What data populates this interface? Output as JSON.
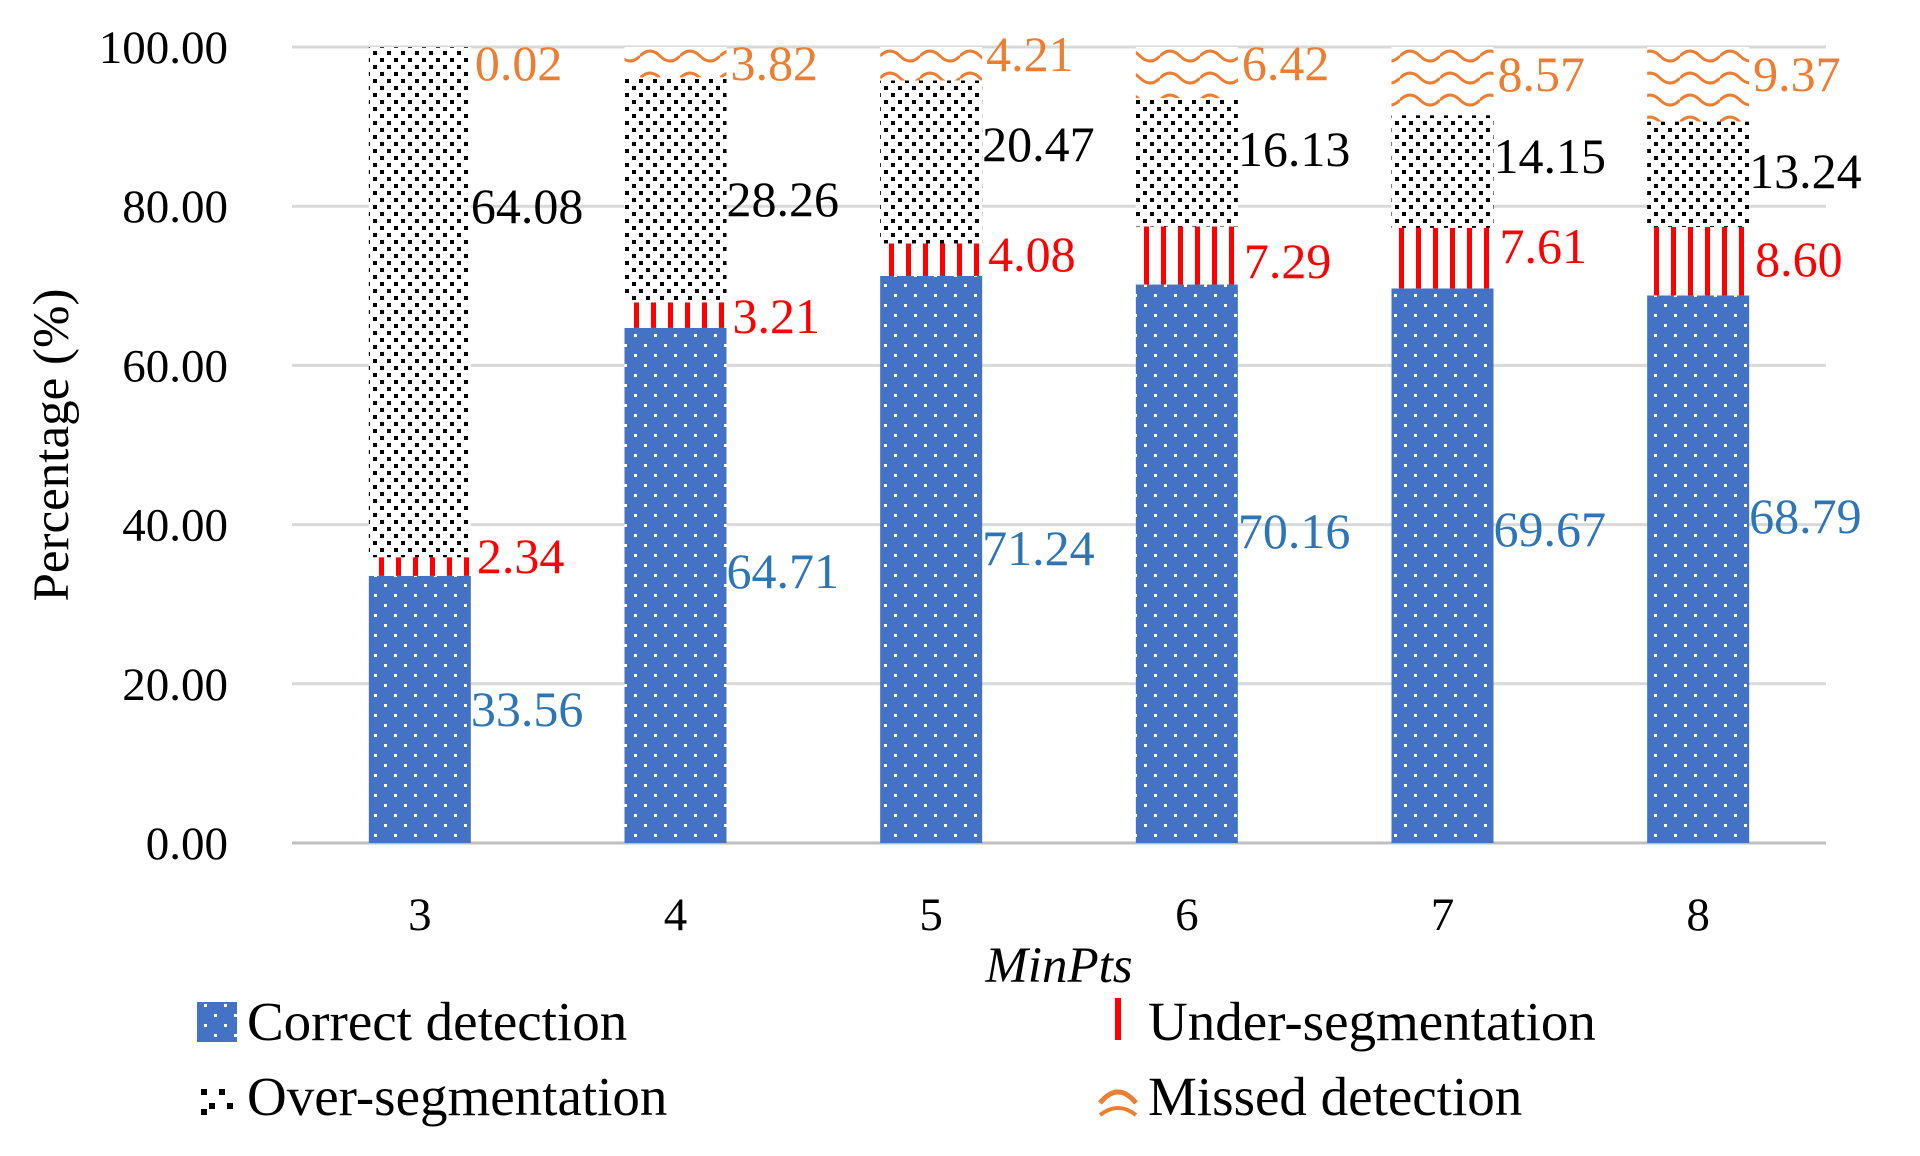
{
  "chart_data": {
    "type": "bar",
    "stacked": true,
    "categories": [
      "3",
      "4",
      "5",
      "6",
      "7",
      "8"
    ],
    "series": [
      {
        "name": "Correct detection",
        "values": [
          33.56,
          64.71,
          71.24,
          70.16,
          69.67,
          68.79
        ],
        "color": "#4472C4",
        "label_color": "#2E75B6",
        "pattern": "white-dots"
      },
      {
        "name": "Under-segmentation",
        "values": [
          2.34,
          3.21,
          4.08,
          7.29,
          7.61,
          8.6
        ],
        "color": "#FF0000",
        "label_color": "#FF0000",
        "pattern": "vertical-stripes"
      },
      {
        "name": "Over-segmentation",
        "values": [
          64.08,
          28.26,
          20.47,
          16.13,
          14.15,
          13.24
        ],
        "color": "#000000",
        "label_color": "#000000",
        "pattern": "black-dots"
      },
      {
        "name": "Missed detection",
        "values": [
          0.02,
          3.82,
          4.21,
          6.42,
          8.57,
          9.37
        ],
        "color": "#ED7D31",
        "label_color": "#ED7D31",
        "pattern": "waves"
      }
    ],
    "labels": [
      [
        "33.56",
        "64.71",
        "71.24",
        "70.16",
        "69.67",
        "68.79"
      ],
      [
        "2.34",
        "3.21",
        "4.08",
        "7.29",
        "7.61",
        "8.60"
      ],
      [
        "64.08",
        "28.26",
        "20.47",
        "16.13",
        "14.15",
        "13.24"
      ],
      [
        "0.02",
        "3.82",
        "4.21",
        "6.42",
        "8.57",
        "9.37"
      ]
    ],
    "yticks": [
      "0.00",
      "20.00",
      "40.00",
      "60.00",
      "80.00",
      "100.00"
    ],
    "ylim": [
      0,
      100
    ],
    "title": "",
    "xlabel": "MinPts",
    "ylabel": "Percentage (%)",
    "grid": true,
    "legend_position": "bottom"
  }
}
